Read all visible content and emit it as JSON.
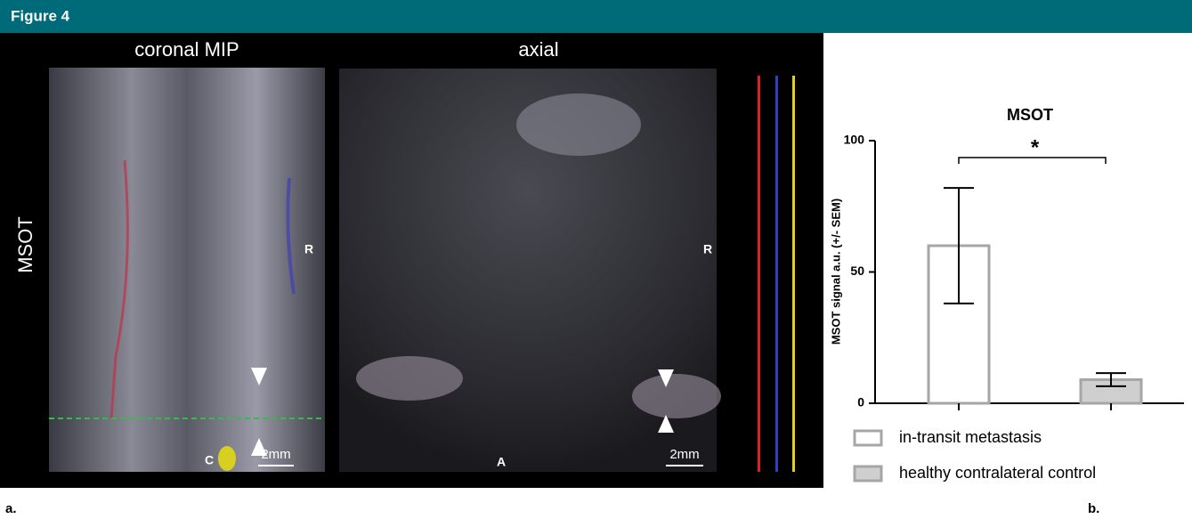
{
  "figure": {
    "title": "Figure 4",
    "panel_a_label": "a.",
    "panel_b_label": "b."
  },
  "images": {
    "coronal_title": "coronal MIP",
    "axial_title": "axial",
    "row_label": "MSOT",
    "coronal_orientation": [
      "R",
      "C"
    ],
    "axial_orientation": [
      "R",
      "A"
    ],
    "scale_bars": [
      "2mm",
      "2mm"
    ]
  },
  "chart_data": {
    "type": "bar",
    "title": "MSOT",
    "y_label": "MSOT signal a.u. (+/- SEM)",
    "ylim": [
      0,
      100
    ],
    "yticks": [
      0,
      50,
      100
    ],
    "annotation": "*",
    "series": [
      {
        "name": "in-transit metastasis",
        "color": "#ffffff",
        "edge": "#a6a6a6",
        "values": [
          60
        ],
        "errors": [
          22
        ]
      },
      {
        "name": "healthy contralateral control",
        "color": "#cfcfcf",
        "edge": "#a6a6a6",
        "values": [
          9
        ],
        "errors": [
          2.5
        ]
      }
    ]
  }
}
